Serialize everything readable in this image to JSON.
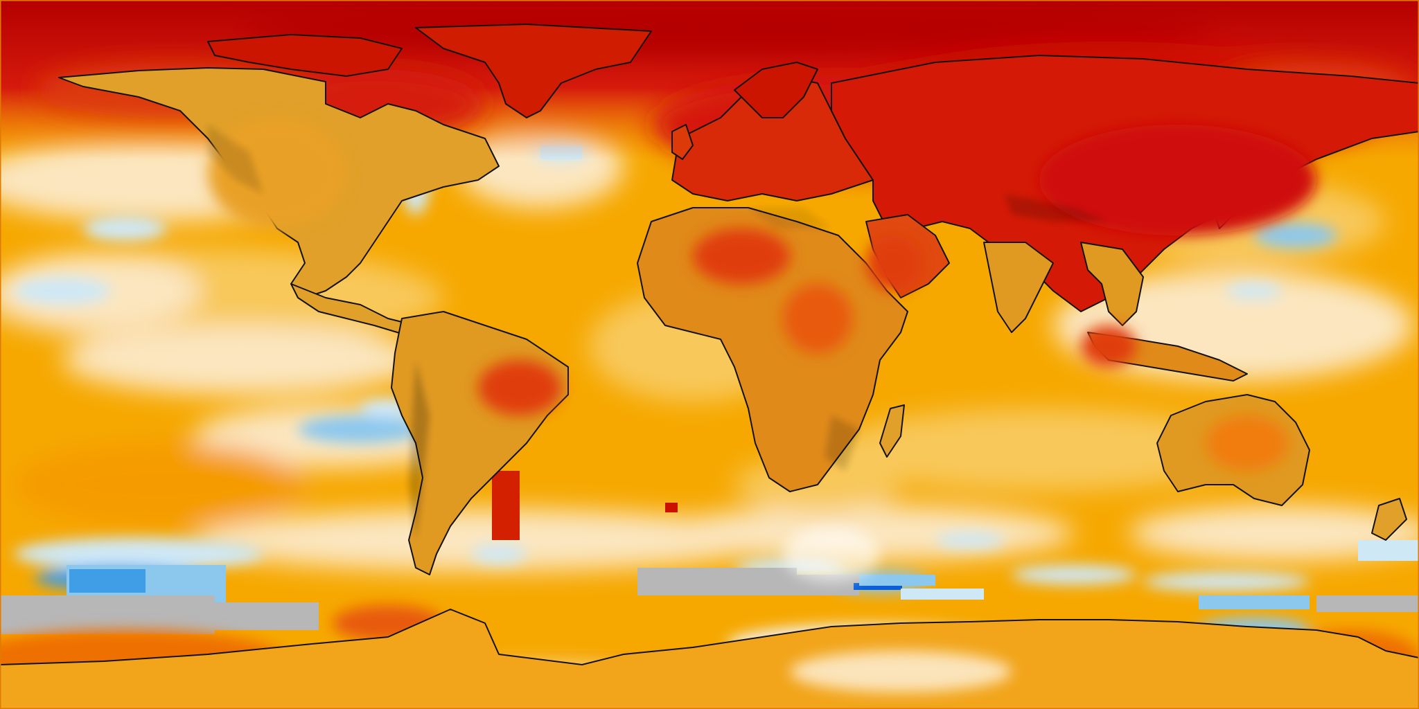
{
  "map": {
    "type": "global temperature anomaly map",
    "projection": "equirectangular",
    "coastline_color": "#111111",
    "palette": {
      "base_ocean": "#f6a800",
      "warm_light": "#f8c85a",
      "pale": "#fbe6c0",
      "neutral_white": "#f4f4f2",
      "cool_light": "#cfe8f6",
      "cool": "#8cc8ee",
      "cool_mid": "#3f9ee6",
      "cool_deep": "#0a5fd8",
      "warm": "#f07d10",
      "hot": "#e53c10",
      "very_hot": "#cf1010",
      "extreme": "#b80000",
      "no_data": "#b7b7b7",
      "land_tint": "#d88b12"
    },
    "legend_text": [],
    "labels": []
  }
}
